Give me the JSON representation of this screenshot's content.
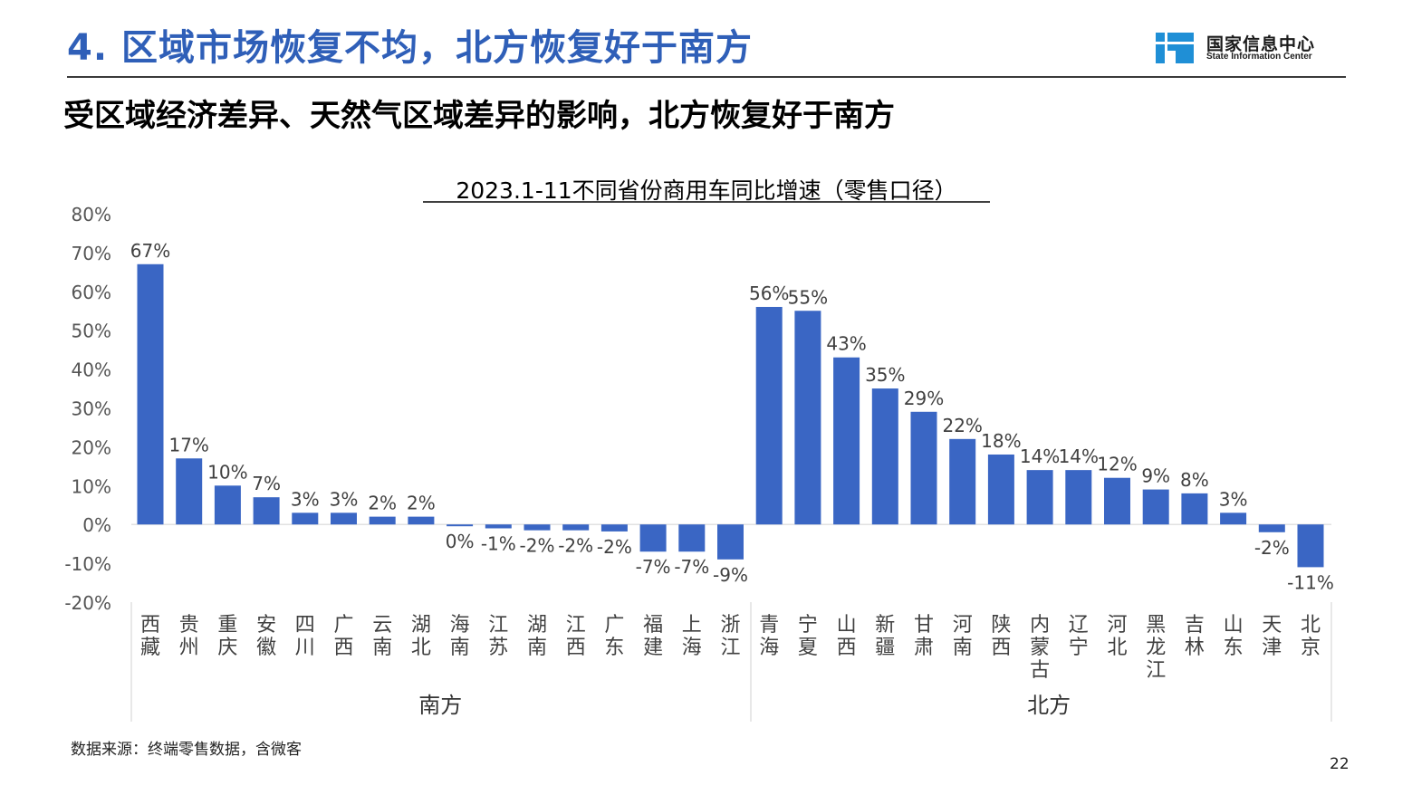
{
  "header": {
    "title": "4. 区域市场恢复不均，北方恢复好于南方",
    "subtitle": "受区域经济差异、天然气区域差异的影响，北方恢复好于南方",
    "logo_cn": "国家信息中心",
    "logo_en": "State Information Center"
  },
  "footer": {
    "source": "数据来源：终端零售数据，含微客",
    "page_number": "22"
  },
  "colors": {
    "bar": "#3a66c4",
    "title": "#2f5fb8"
  },
  "chart_data": {
    "type": "bar",
    "title": "2023.1-11不同省份商用车同比增速（零售口径）",
    "ylim": [
      -0.2,
      0.8
    ],
    "yticks": [
      "80%",
      "70%",
      "60%",
      "50%",
      "40%",
      "30%",
      "20%",
      "10%",
      "0%",
      "-10%",
      "-20%"
    ],
    "ytick_values": [
      0.8,
      0.7,
      0.6,
      0.5,
      0.4,
      0.3,
      0.2,
      0.1,
      0.0,
      -0.1,
      -0.2
    ],
    "groups": [
      {
        "name": "南方",
        "categories": [
          "西藏",
          "贵州",
          "重庆",
          "安徽",
          "四川",
          "广西",
          "云南",
          "湖北",
          "海南",
          "江苏",
          "湖南",
          "江西",
          "广东",
          "福建",
          "上海",
          "浙江"
        ],
        "values": [
          0.67,
          0.17,
          0.1,
          0.07,
          0.03,
          0.03,
          0.02,
          0.02,
          -0.004,
          -0.01,
          -0.015,
          -0.015,
          -0.018,
          -0.07,
          -0.07,
          -0.09
        ],
        "labels": [
          "67%",
          "17%",
          "10%",
          "7%",
          "3%",
          "3%",
          "2%",
          "2%",
          "0%",
          "-1%",
          "-2%",
          "-2%",
          "-2%",
          "-7%",
          "-7%",
          "-9%"
        ]
      },
      {
        "name": "北方",
        "categories": [
          "青海",
          "宁夏",
          "山西",
          "新疆",
          "甘肃",
          "河南",
          "陕西",
          "内蒙古",
          "辽宁",
          "河北",
          "黑龙江",
          "吉林",
          "山东",
          "天津",
          "北京"
        ],
        "values": [
          0.56,
          0.55,
          0.43,
          0.35,
          0.29,
          0.22,
          0.18,
          0.14,
          0.14,
          0.12,
          0.09,
          0.08,
          0.03,
          -0.02,
          -0.11
        ],
        "labels": [
          "56%",
          "55%",
          "43%",
          "35%",
          "29%",
          "22%",
          "18%",
          "14%",
          "14%",
          "12%",
          "9%",
          "8%",
          "3%",
          "-2%",
          "-11%"
        ]
      }
    ],
    "legend": "none",
    "grid": false
  }
}
